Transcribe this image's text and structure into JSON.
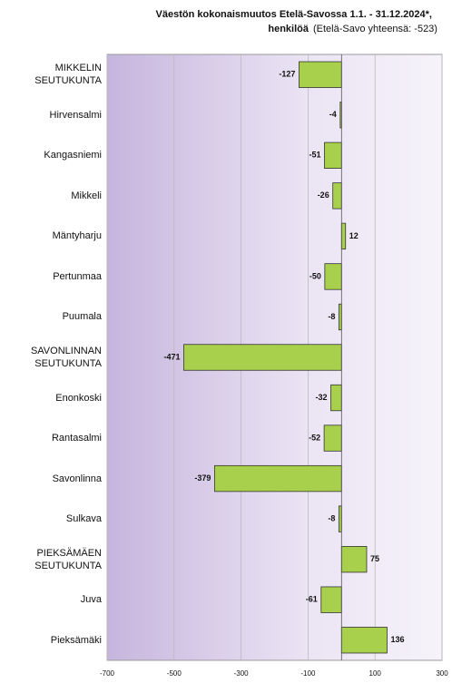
{
  "chart_data": {
    "type": "bar",
    "orientation": "horizontal",
    "title": "Väestön kokonaismuutos Etelä-Savossa 1.1. - 31.12.2024*,",
    "title_line2": "henkilöä",
    "subtitle": "(Etelä-Savo yhteensä: -523)",
    "categories": [
      "MIKKELIN SEUTUKUNTA",
      "Hirvensalmi",
      "Kangasniemi",
      "Mikkeli",
      "Mäntyharju",
      "Pertunmaa",
      "Puumala",
      "SAVONLINNAN SEUTUKUNTA",
      "Enonkoski",
      "Rantasalmi",
      "Savonlinna",
      "Sulkava",
      "PIEKSÄMÄEN SEUTUKUNTA",
      "Juva",
      "Pieksämäki"
    ],
    "values": [
      -127,
      -4,
      -51,
      -26,
      12,
      -50,
      -8,
      -471,
      -32,
      -52,
      -379,
      -8,
      75,
      -61,
      136
    ],
    "color": "#a9d04c",
    "xlim": [
      -700,
      300
    ],
    "xticks": [
      -700,
      -500,
      -300,
      -100,
      100,
      300
    ],
    "grid": true
  }
}
